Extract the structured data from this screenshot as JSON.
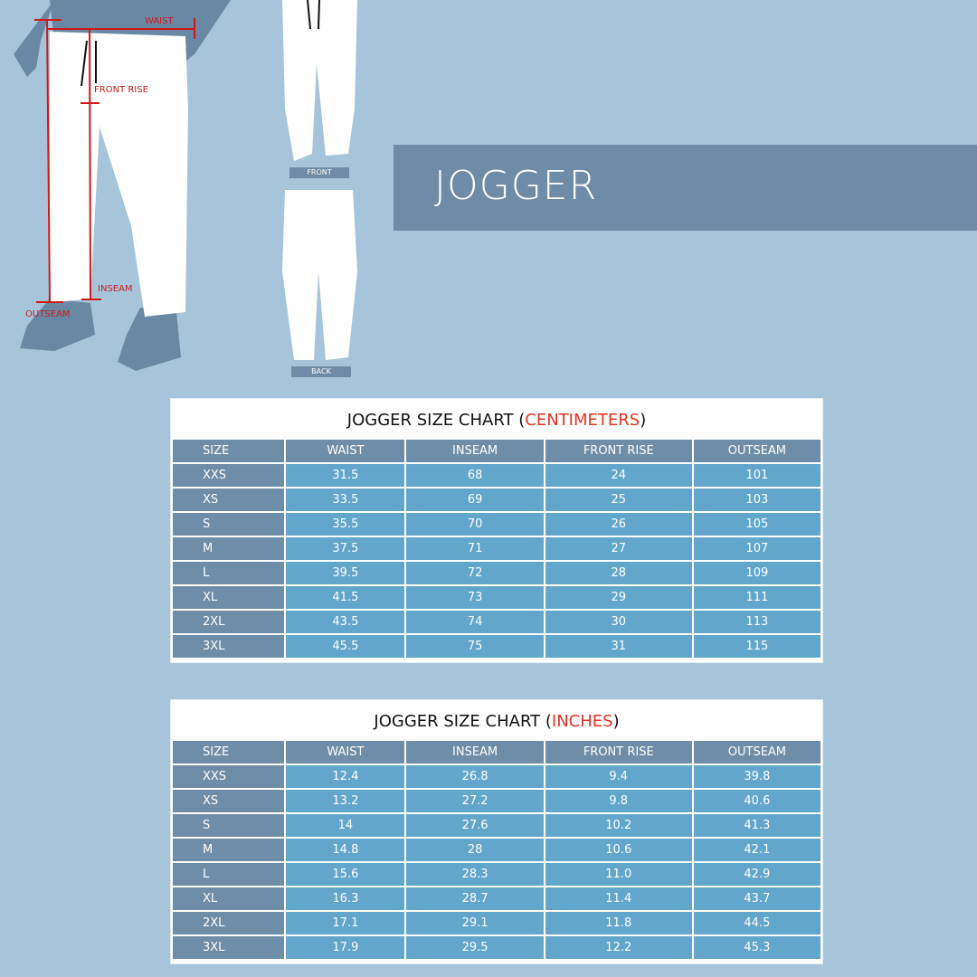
{
  "illustration": {
    "labels": {
      "waist": "WAIST",
      "front_rise": "FRONT RISE",
      "inseam": "INSEAM",
      "outseam": "OUTSEAM"
    },
    "view_front": "FRONT",
    "view_back": "BACK",
    "measure_color": "#d01818"
  },
  "banner": {
    "title": "JOGGER"
  },
  "colors": {
    "background": "#a6c5da",
    "banner": "#6e8ca7",
    "header_cell": "#6e8da8",
    "data_cell": "#62a6cc",
    "unit_accent": "#e8321e"
  },
  "charts": [
    {
      "title_prefix": "JOGGER SIZE CHART (",
      "unit": "CENTIMETERS",
      "title_suffix": ")",
      "headers": [
        "SIZE",
        "WAIST",
        "INSEAM",
        "FRONT RISE",
        "OUTSEAM"
      ],
      "rows": [
        [
          "XXS",
          "31.5",
          "68",
          "24",
          "101"
        ],
        [
          "XS",
          "33.5",
          "69",
          "25",
          "103"
        ],
        [
          "S",
          "35.5",
          "70",
          "26",
          "105"
        ],
        [
          "M",
          "37.5",
          "71",
          "27",
          "107"
        ],
        [
          "L",
          "39.5",
          "72",
          "28",
          "109"
        ],
        [
          "XL",
          "41.5",
          "73",
          "29",
          "111"
        ],
        [
          "2XL",
          "43.5",
          "74",
          "30",
          "113"
        ],
        [
          "3XL",
          "45.5",
          "75",
          "31",
          "115"
        ]
      ]
    },
    {
      "title_prefix": "JOGGER SIZE CHART (",
      "unit": "INCHES",
      "title_suffix": ")",
      "headers": [
        "SIZE",
        "WAIST",
        "INSEAM",
        "FRONT RISE",
        "OUTSEAM"
      ],
      "rows": [
        [
          "XXS",
          "12.4",
          "26.8",
          "9.4",
          "39.8"
        ],
        [
          "XS",
          "13.2",
          "27.2",
          "9.8",
          "40.6"
        ],
        [
          "S",
          "14",
          "27.6",
          "10.2",
          "41.3"
        ],
        [
          "M",
          "14.8",
          "28",
          "10.6",
          "42.1"
        ],
        [
          "L",
          "15.6",
          "28.3",
          "11.0",
          "42.9"
        ],
        [
          "XL",
          "16.3",
          "28.7",
          "11.4",
          "43.7"
        ],
        [
          "2XL",
          "17.1",
          "29.1",
          "11.8",
          "44.5"
        ],
        [
          "3XL",
          "17.9",
          "29.5",
          "12.2",
          "45.3"
        ]
      ]
    }
  ]
}
